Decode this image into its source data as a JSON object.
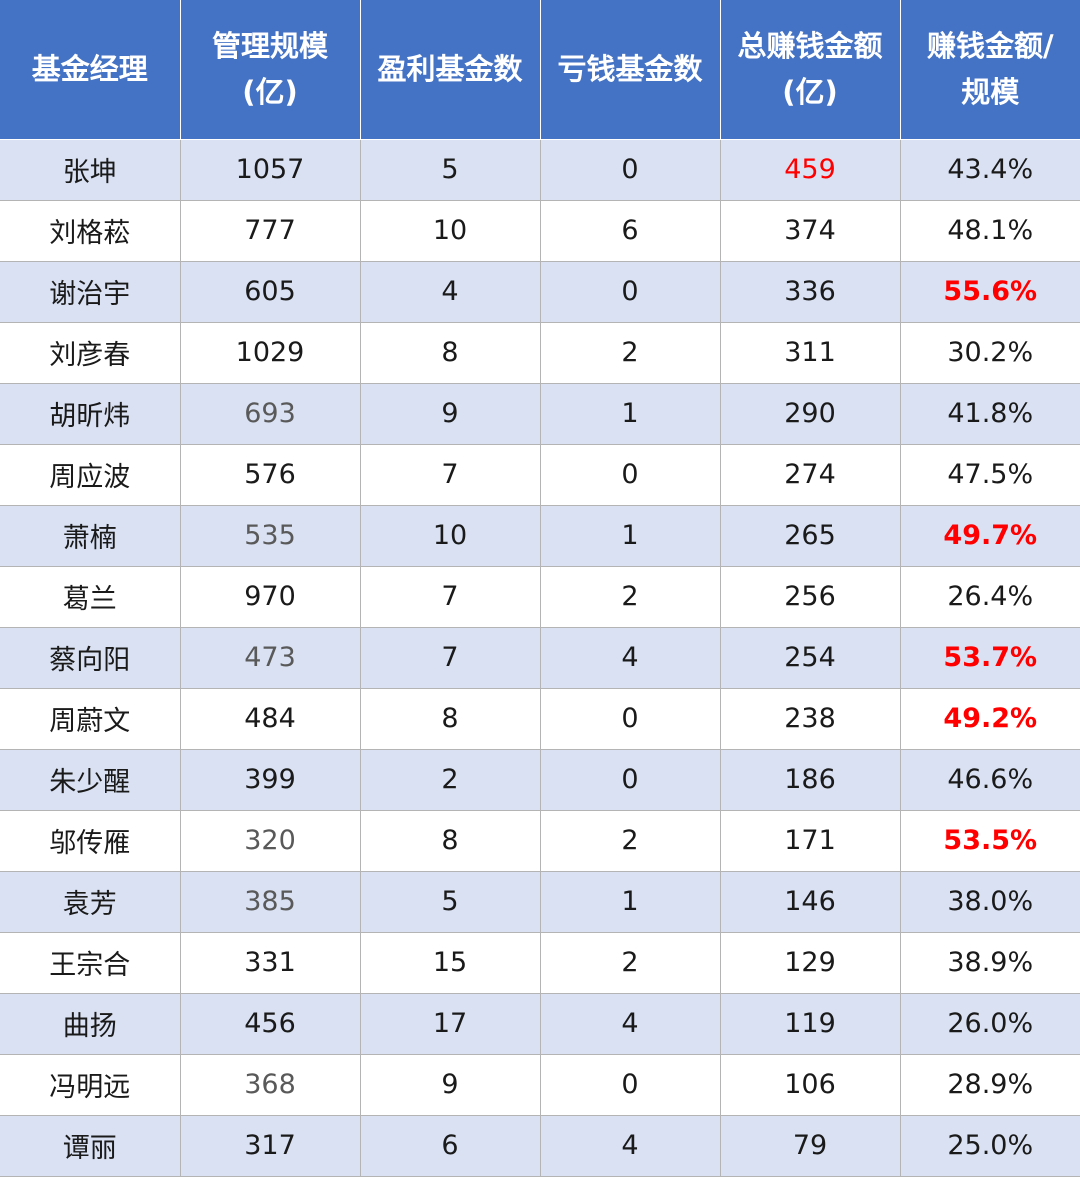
{
  "headers": [
    {
      "line1": "基金经理",
      "line2": ""
    },
    {
      "line1": "管理规模",
      "line2": "(亿)"
    },
    {
      "line1": "盈利基金数",
      "line2": ""
    },
    {
      "line1": "亏钱基金数",
      "line2": ""
    },
    {
      "line1": "总赚钱金额",
      "line2": "(亿)"
    },
    {
      "line1": "赚钱金额/",
      "line2": "规模"
    }
  ],
  "rows": [
    {
      "name": "张坤",
      "scale": "1057",
      "profit_funds": "5",
      "loss_funds": "0",
      "total_earned": "459",
      "ratio": "43.4%"
    },
    {
      "name": "刘格菘",
      "scale": "777",
      "profit_funds": "10",
      "loss_funds": "6",
      "total_earned": "374",
      "ratio": "48.1%"
    },
    {
      "name": "谢治宇",
      "scale": "605",
      "profit_funds": "4",
      "loss_funds": "0",
      "total_earned": "336",
      "ratio": "55.6%"
    },
    {
      "name": "刘彦春",
      "scale": "1029",
      "profit_funds": "8",
      "loss_funds": "2",
      "total_earned": "311",
      "ratio": "30.2%"
    },
    {
      "name": "胡昕炜",
      "scale": "693",
      "profit_funds": "9",
      "loss_funds": "1",
      "total_earned": "290",
      "ratio": "41.8%"
    },
    {
      "name": "周应波",
      "scale": "576",
      "profit_funds": "7",
      "loss_funds": "0",
      "total_earned": "274",
      "ratio": "47.5%"
    },
    {
      "name": "萧楠",
      "scale": "535",
      "profit_funds": "10",
      "loss_funds": "1",
      "total_earned": "265",
      "ratio": "49.7%"
    },
    {
      "name": "葛兰",
      "scale": "970",
      "profit_funds": "7",
      "loss_funds": "2",
      "total_earned": "256",
      "ratio": "26.4%"
    },
    {
      "name": "蔡向阳",
      "scale": "473",
      "profit_funds": "7",
      "loss_funds": "4",
      "total_earned": "254",
      "ratio": "53.7%"
    },
    {
      "name": "周蔚文",
      "scale": "484",
      "profit_funds": "8",
      "loss_funds": "0",
      "total_earned": "238",
      "ratio": "49.2%"
    },
    {
      "name": "朱少醒",
      "scale": "399",
      "profit_funds": "2",
      "loss_funds": "0",
      "total_earned": "186",
      "ratio": "46.6%"
    },
    {
      "name": "邬传雁",
      "scale": "320",
      "profit_funds": "8",
      "loss_funds": "2",
      "total_earned": "171",
      "ratio": "53.5%"
    },
    {
      "name": "袁芳",
      "scale": "385",
      "profit_funds": "5",
      "loss_funds": "1",
      "total_earned": "146",
      "ratio": "38.0%"
    },
    {
      "name": "王宗合",
      "scale": "331",
      "profit_funds": "15",
      "loss_funds": "2",
      "total_earned": "129",
      "ratio": "38.9%"
    },
    {
      "name": "曲扬",
      "scale": "456",
      "profit_funds": "17",
      "loss_funds": "4",
      "total_earned": "119",
      "ratio": "26.0%"
    },
    {
      "name": "冯明远",
      "scale": "368",
      "profit_funds": "9",
      "loss_funds": "0",
      "total_earned": "106",
      "ratio": "28.9%"
    },
    {
      "name": "谭丽",
      "scale": "317",
      "profit_funds": "6",
      "loss_funds": "4",
      "total_earned": "79",
      "ratio": "25.0%"
    }
  ],
  "colors": {
    "header_bg": "#4472c4",
    "header_text": "#ffffff",
    "band_row": "#d9e1f2",
    "highlight_red": "#ff0000"
  }
}
